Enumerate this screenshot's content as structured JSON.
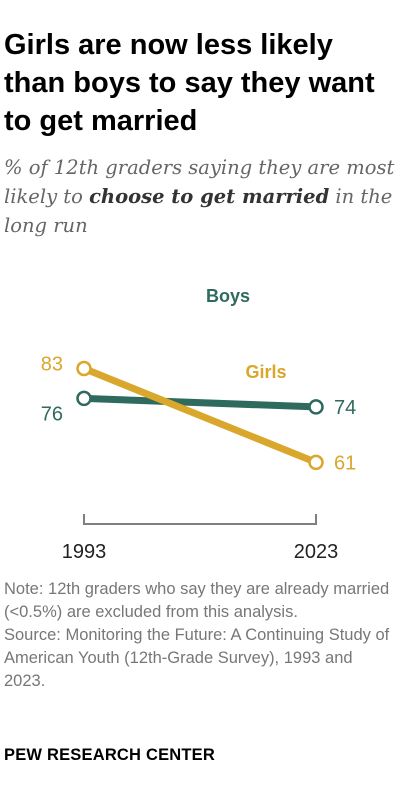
{
  "title": "Girls are now less likely than boys to say they want to get married",
  "subtitle": {
    "part1": "% of 12th graders saying they are most likely to ",
    "emphasis": "choose to get married",
    "part2": " in the long run"
  },
  "chart_data": {
    "type": "line",
    "x": [
      "1993",
      "2023"
    ],
    "ylim": [
      40,
      100
    ],
    "series": [
      {
        "name": "Boys",
        "values": [
          76,
          74
        ],
        "color": "#2e6b5e"
      },
      {
        "name": "Girls",
        "values": [
          83,
          61
        ],
        "color": "#d9a72c"
      }
    ]
  },
  "note": "Note: 12th graders who say they are already married (<0.5%) are excluded from this analysis.",
  "source": "Source: Monitoring the Future: A Continuing Study of American Youth (12th-Grade Survey), 1993 and 2023.",
  "brand": "PEW RESEARCH CENTER"
}
